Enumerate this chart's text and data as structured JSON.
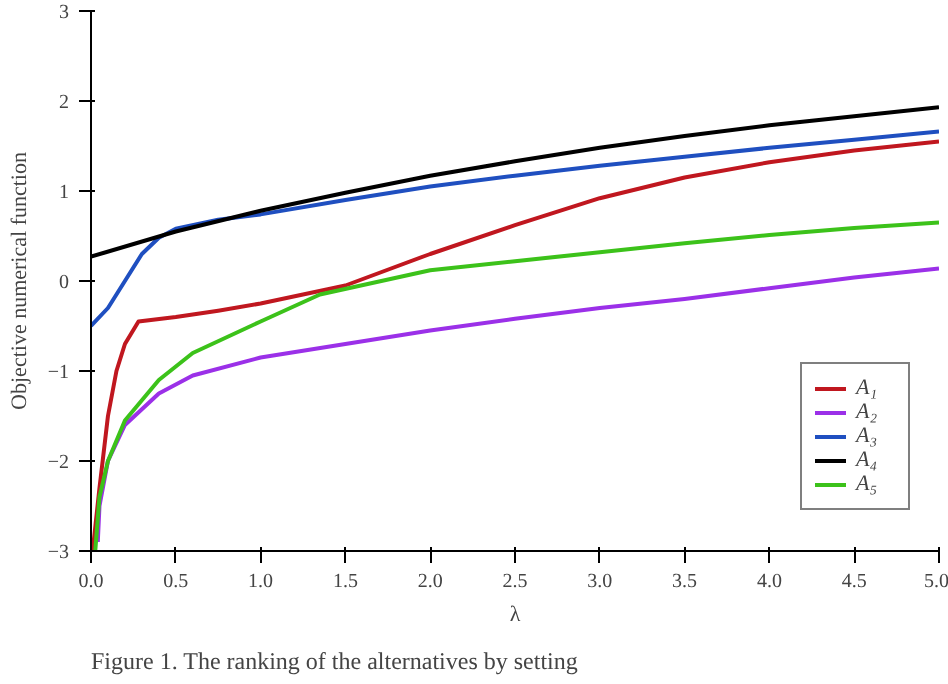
{
  "chart_data": {
    "type": "line",
    "xlabel": "λ",
    "ylabel": "Objective numerical function",
    "annotations": [
      "Figure 1. The ranking of the alternatives by setting"
    ],
    "xlim": [
      0,
      5
    ],
    "ylim": [
      -3,
      3
    ],
    "xticks": [
      {
        "value": 0,
        "label": "0.0"
      },
      {
        "value": 0.5,
        "label": "0.5"
      },
      {
        "value": 1,
        "label": "1.0"
      },
      {
        "value": 1.5,
        "label": "1.5"
      },
      {
        "value": 2,
        "label": "2.0"
      },
      {
        "value": 2.5,
        "label": "2.5"
      },
      {
        "value": 3,
        "label": "3.0"
      },
      {
        "value": 3.5,
        "label": "3.5"
      },
      {
        "value": 4,
        "label": "4.0"
      },
      {
        "value": 4.5,
        "label": "4.5"
      },
      {
        "value": 5,
        "label": "5.0"
      }
    ],
    "yticks": [
      -3,
      -2,
      -1,
      0,
      1,
      2,
      3
    ],
    "grid": false,
    "legend": "right",
    "marker": "none",
    "line_style": "solid",
    "series": [
      {
        "name": "A₁",
        "color": "#c0171f",
        "x": [
          0.01,
          0.05,
          0.1,
          0.15,
          0.2,
          0.28,
          0.5,
          0.75,
          1.0,
          1.25,
          1.5,
          2.0,
          2.5,
          3.0,
          3.5,
          4.0,
          4.5,
          5.0
        ],
        "values": [
          -3,
          -2.3,
          -1.5,
          -1.0,
          -0.7,
          -0.45,
          -0.4,
          -0.33,
          -0.25,
          -0.15,
          -0.05,
          0.3,
          0.62,
          0.92,
          1.15,
          1.32,
          1.45,
          1.55
        ]
      },
      {
        "name": "A₂",
        "color": "#9b30e8",
        "x": [
          0.04,
          0.05,
          0.1,
          0.2,
          0.4,
          0.6,
          1.0,
          1.5,
          2.0,
          2.5,
          3.0,
          3.5,
          4.0,
          4.5,
          5.0
        ],
        "values": [
          -2.9,
          -2.5,
          -2.0,
          -1.6,
          -1.25,
          -1.05,
          -0.85,
          -0.7,
          -0.55,
          -0.42,
          -0.3,
          -0.2,
          -0.08,
          0.04,
          0.14
        ]
      },
      {
        "name": "A₃",
        "color": "#1f4fc0",
        "x": [
          0.0,
          0.1,
          0.2,
          0.3,
          0.4,
          0.5,
          0.75,
          1.0,
          1.5,
          2.0,
          2.5,
          3.0,
          3.5,
          4.0,
          4.5,
          5.0
        ],
        "values": [
          -0.5,
          -0.3,
          0.0,
          0.3,
          0.48,
          0.58,
          0.68,
          0.74,
          0.9,
          1.05,
          1.17,
          1.28,
          1.38,
          1.48,
          1.57,
          1.66
        ]
      },
      {
        "name": "A₄",
        "color": "#000000",
        "x": [
          0.0,
          0.5,
          1.0,
          1.5,
          2.0,
          2.5,
          3.0,
          3.5,
          4.0,
          4.5,
          5.0
        ],
        "values": [
          0.27,
          0.55,
          0.78,
          0.98,
          1.17,
          1.33,
          1.48,
          1.61,
          1.73,
          1.83,
          1.93
        ]
      },
      {
        "name": "A₅",
        "color": "#3cc21a",
        "x": [
          0.025,
          0.05,
          0.1,
          0.2,
          0.4,
          0.6,
          1.0,
          1.35,
          2.0,
          2.5,
          3.0,
          3.5,
          4.0,
          4.5,
          5.0
        ],
        "values": [
          -3,
          -2.4,
          -2.0,
          -1.55,
          -1.1,
          -0.8,
          -0.45,
          -0.15,
          0.12,
          0.22,
          0.32,
          0.42,
          0.51,
          0.59,
          0.65
        ]
      }
    ]
  }
}
